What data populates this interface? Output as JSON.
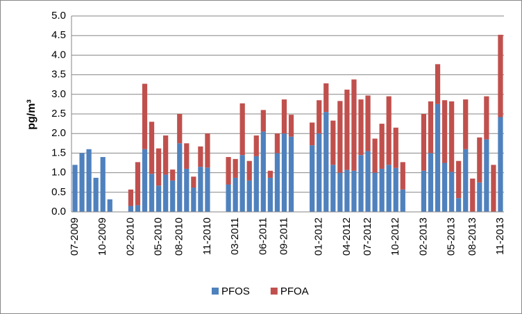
{
  "chart_data": {
    "type": "stacked_bar",
    "y_label": "pg/m³",
    "categories": [
      "07-2009",
      null,
      null,
      null,
      "10-2009",
      null,
      null,
      null,
      "02-2010",
      null,
      null,
      null,
      "05-2010",
      null,
      null,
      "08-2010",
      null,
      null,
      null,
      "11-2010",
      null,
      null,
      null,
      "03-2011",
      null,
      null,
      null,
      "06-2011",
      null,
      null,
      "09-2011",
      null,
      null,
      null,
      null,
      "01-2012",
      null,
      null,
      null,
      "04-2012",
      null,
      null,
      "07-2012",
      null,
      null,
      null,
      "10-2012",
      null,
      null,
      null,
      "02-2013",
      null,
      null,
      null,
      "05-2013",
      null,
      null,
      "08-2013",
      null,
      null,
      null,
      "11-2013"
    ],
    "series": [
      {
        "name": "PFOS",
        "color": "#4f81bd",
        "values": [
          1.2,
          1.5,
          1.6,
          0.87,
          1.4,
          0.32,
          null,
          null,
          0.15,
          0.17,
          1.6,
          0.97,
          0.67,
          0.95,
          0.8,
          1.75,
          1.1,
          0.62,
          1.15,
          1.13,
          null,
          null,
          0.7,
          0.87,
          1.45,
          0.8,
          1.42,
          2.05,
          0.87,
          1.5,
          2.0,
          1.92,
          null,
          null,
          1.7,
          2.0,
          2.55,
          1.2,
          1.0,
          1.07,
          1.05,
          1.45,
          1.55,
          1.0,
          1.1,
          1.2,
          1.12,
          0.57,
          null,
          null,
          1.05,
          1.5,
          2.75,
          1.25,
          1.02,
          0.35,
          1.6,
          0,
          0.75,
          1.85,
          0,
          2.42
        ]
      },
      {
        "name": "PFOA",
        "color": "#c0504d",
        "values": [
          0,
          0,
          0,
          0,
          0,
          0,
          null,
          null,
          0.42,
          1.1,
          1.67,
          1.33,
          0.95,
          1.0,
          0.28,
          0.75,
          0.65,
          0.28,
          0.52,
          0.87,
          null,
          null,
          0.7,
          0.48,
          1.32,
          0.5,
          0.53,
          0.55,
          0.18,
          0.5,
          0.87,
          0.56,
          null,
          null,
          0.58,
          0.85,
          0.73,
          1.13,
          1.83,
          2.05,
          2.33,
          1.42,
          1.42,
          0.87,
          1.15,
          1.75,
          1.03,
          0.7,
          null,
          null,
          1.45,
          1.32,
          1.02,
          1.6,
          1.8,
          0.95,
          1.27,
          0.85,
          1.15,
          1.1,
          1.2,
          2.1
        ]
      }
    ],
    "ylim": [
      0,
      5
    ],
    "yticks": [
      {
        "value": 0,
        "label": "0.0"
      },
      {
        "value": 0.5,
        "label": "0.5"
      },
      {
        "value": 1,
        "label": "1.0"
      },
      {
        "value": 1.5,
        "label": "1.5"
      },
      {
        "value": 2,
        "label": "2.0"
      },
      {
        "value": 2.5,
        "label": "2.5"
      },
      {
        "value": 3,
        "label": "3.0"
      },
      {
        "value": 3.5,
        "label": "3.5"
      },
      {
        "value": 4,
        "label": "4.0"
      },
      {
        "value": 4.5,
        "label": "4.5"
      },
      {
        "value": 5,
        "label": "5.0"
      }
    ],
    "grid": true,
    "legend": "bottom"
  }
}
